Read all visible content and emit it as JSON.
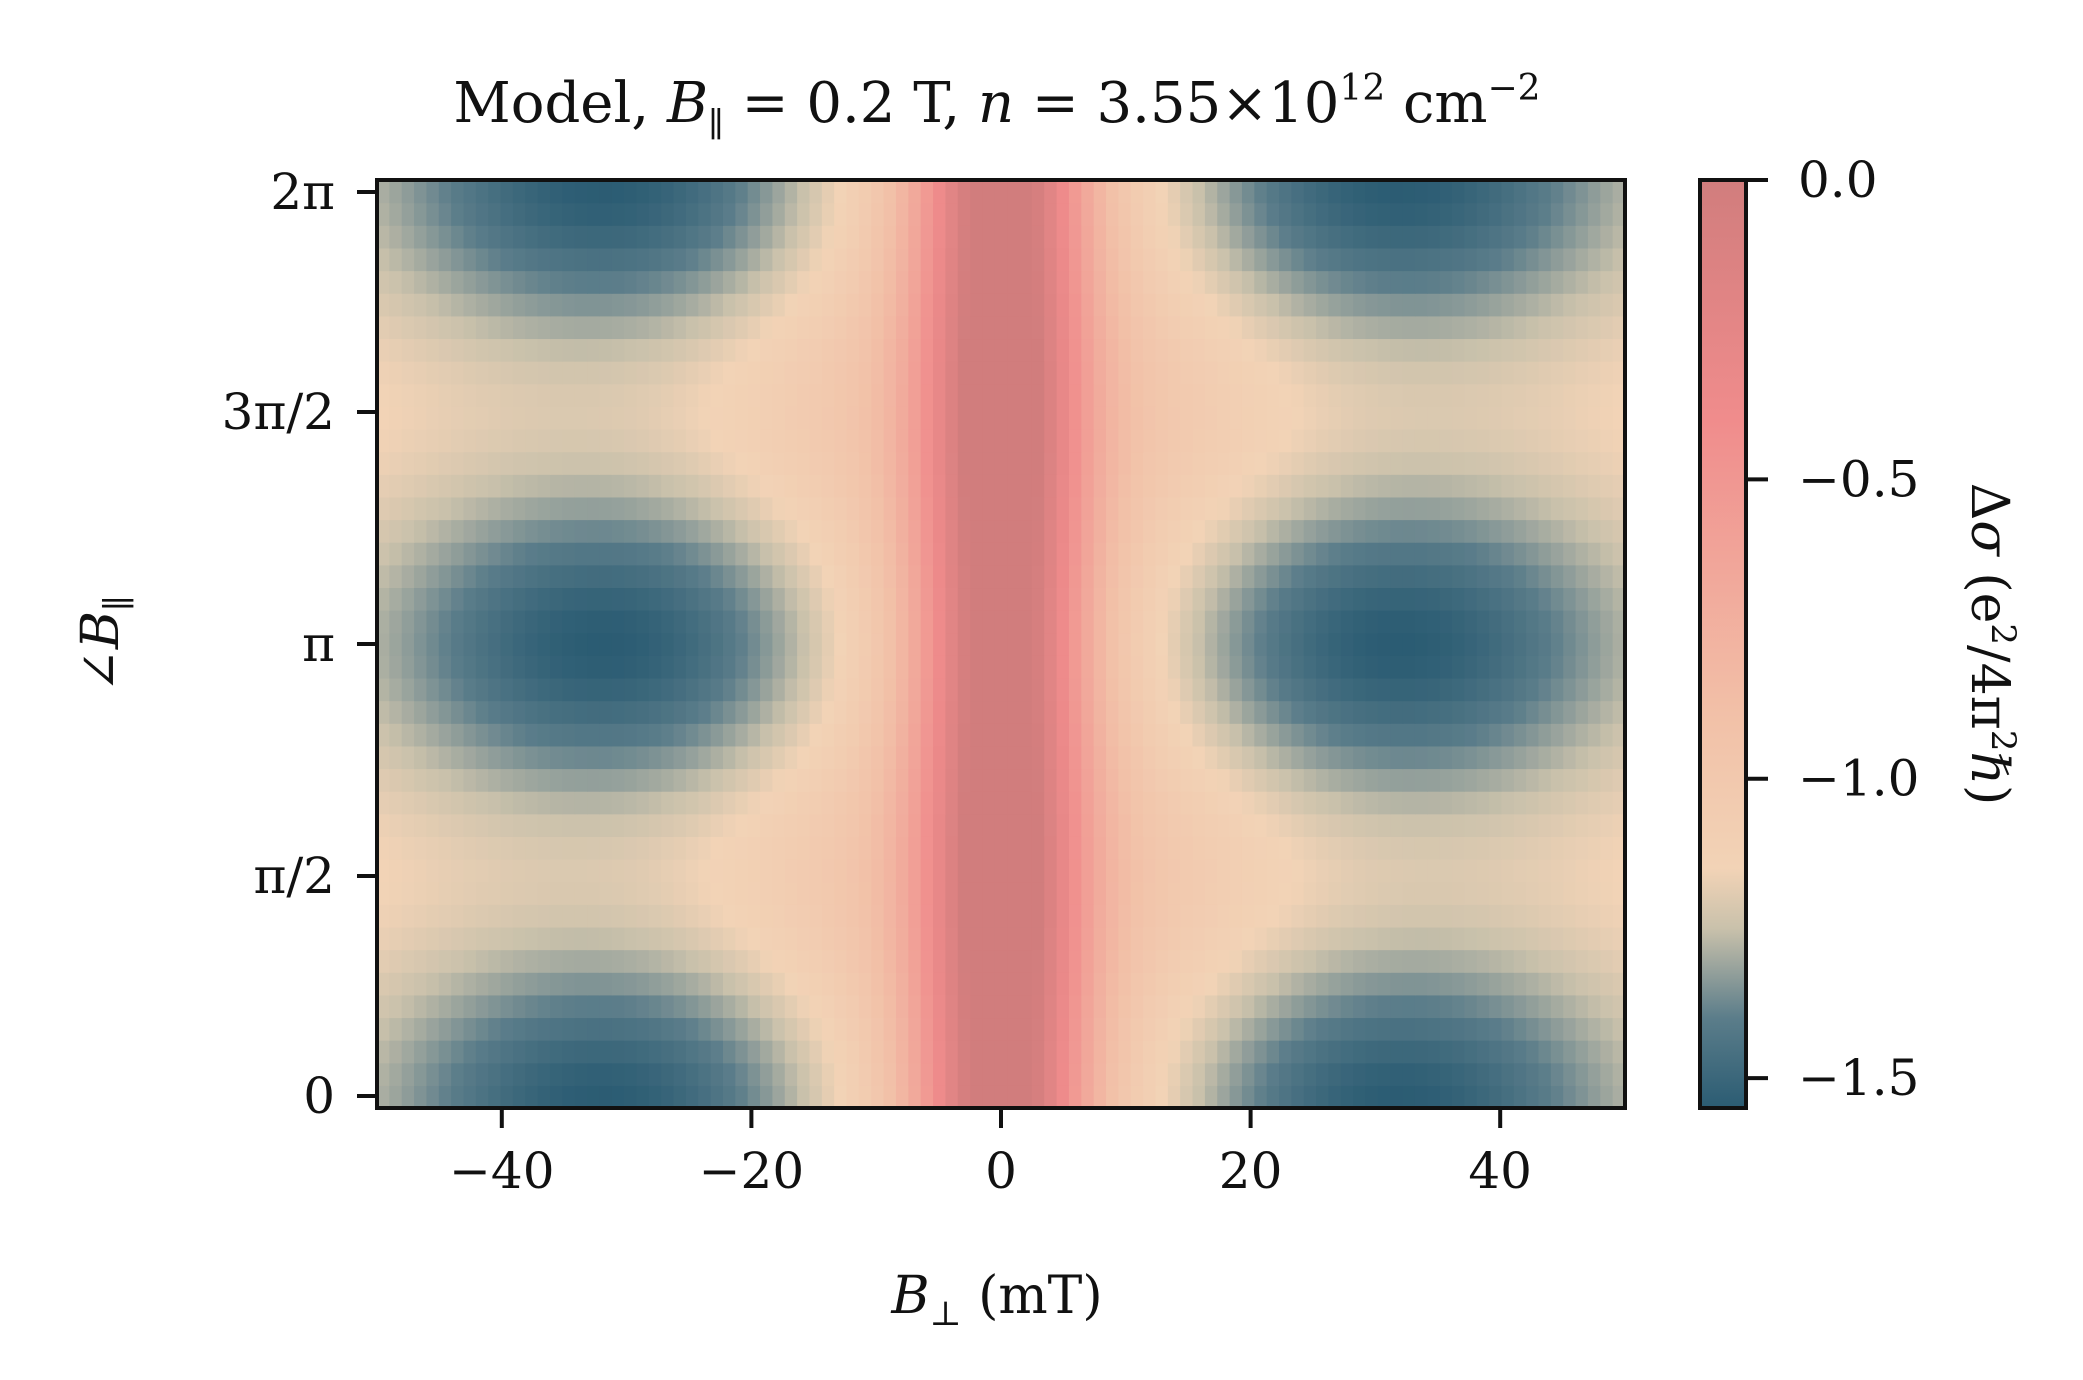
{
  "chart_data": {
    "type": "heatmap",
    "title": {
      "prefix": "Model, ",
      "b_symbol": "B",
      "b_subscript": "∥",
      "b_value": " = 0.2 T, ",
      "n_symbol": "n",
      "n_value": " = 3.55×10",
      "n_exp": "12",
      "unit": " cm",
      "unit_exp": "−2"
    },
    "xlabel": {
      "symbol": "B",
      "subscript": "⊥",
      "unit": " (mT)"
    },
    "ylabel": {
      "prefix": "∠",
      "symbol": "B",
      "subscript": "∥"
    },
    "colorbar_label": {
      "prefix": "Δ",
      "symbol": "σ",
      "open": " (e",
      "sup1": "2",
      "mid": "/4π",
      "sup2": "2",
      "end": "ℏ)"
    },
    "xlim": [
      -50,
      50
    ],
    "ylim": [
      0,
      6.2832
    ],
    "x_ticks": [
      {
        "value": -40,
        "label": "−40"
      },
      {
        "value": -20,
        "label": "−20"
      },
      {
        "value": 0,
        "label": "0"
      },
      {
        "value": 20,
        "label": "20"
      },
      {
        "value": 40,
        "label": "40"
      }
    ],
    "y_ticks": [
      {
        "value": 0,
        "label": "0"
      },
      {
        "value": 1.5708,
        "label": "π/2"
      },
      {
        "value": 3.1416,
        "label": "π"
      },
      {
        "value": 4.7124,
        "label": "3π/2"
      },
      {
        "value": 6.2832,
        "label": "2π"
      }
    ],
    "colorbar": {
      "min": -1.55,
      "max": 0.0,
      "ticks": [
        {
          "value": 0.0,
          "label": "0.0"
        },
        {
          "value": -0.5,
          "label": "−0.5"
        },
        {
          "value": -1.0,
          "label": "−1.0"
        },
        {
          "value": -1.5,
          "label": "−1.5"
        }
      ],
      "colormap": [
        {
          "value": -1.55,
          "color": "#2b5c73"
        },
        {
          "value": -1.4,
          "color": "#5b7d8a"
        },
        {
          "value": -1.25,
          "color": "#c9c1ab"
        },
        {
          "value": -1.15,
          "color": "#f2d3b6"
        },
        {
          "value": -0.9,
          "color": "#f2c1a8"
        },
        {
          "value": -0.4,
          "color": "#f08c8c"
        },
        {
          "value": 0.0,
          "color": "#d17d7d"
        }
      ]
    },
    "grid": false,
    "model": {
      "description_values": {
        "center_dip_value": 0.0,
        "background_value": -1.1,
        "lobe_min_value": -1.55,
        "lobe_x_centers": [
          -32,
          32
        ],
        "lobe_y_centers": [
          0,
          3.1416,
          6.2832
        ],
        "nx": 101,
        "ny": 41
      }
    }
  }
}
